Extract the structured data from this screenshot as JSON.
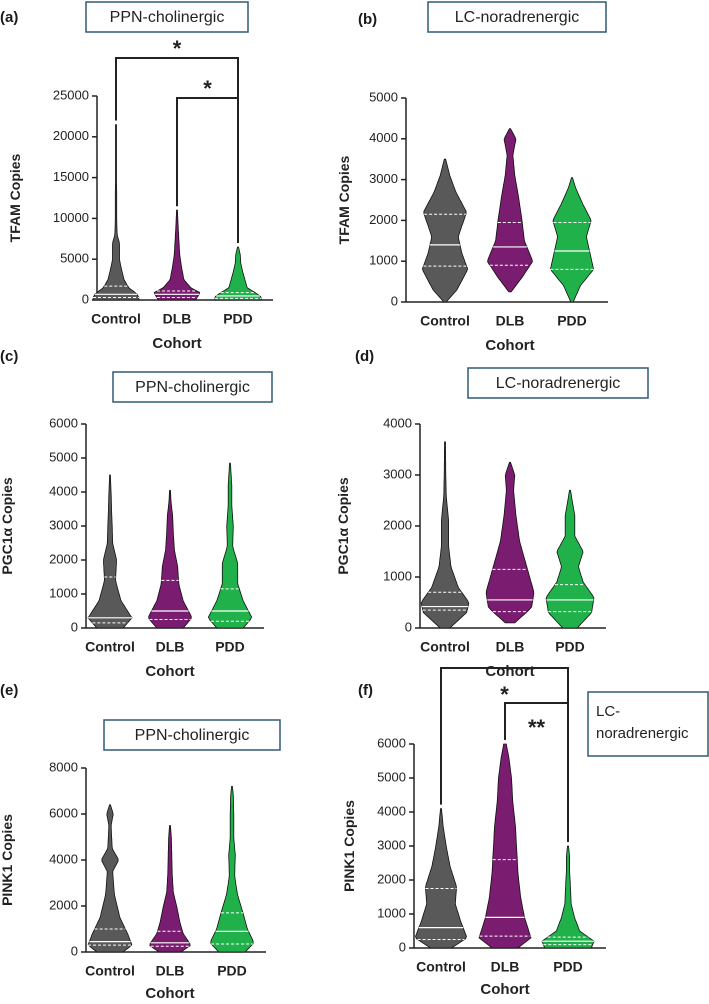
{
  "chart_data": [
    {
      "type": "violin",
      "panel_label": "(a)",
      "region_label": "PPN-cholinergic",
      "ylabel": "TFAM Copies",
      "xlabel": "Cohort",
      "ylim": [
        0,
        25000
      ],
      "yticks": [
        0,
        5000,
        10000,
        15000,
        20000,
        25000
      ],
      "categories": [
        "Control",
        "DLB",
        "PDD"
      ],
      "series": [
        {
          "name": "Control",
          "color": "#595959",
          "min": 0,
          "max": 21500,
          "median": 700,
          "q1": 300,
          "q3": 1700,
          "profile": [
            [
              0,
              1.0
            ],
            [
              300,
              1.0
            ],
            [
              800,
              0.9
            ],
            [
              1500,
              0.55
            ],
            [
              2500,
              0.35
            ],
            [
              4000,
              0.22
            ],
            [
              5000,
              0.15
            ],
            [
              7000,
              0.15
            ],
            [
              8000,
              0.05
            ],
            [
              10000,
              0.03
            ],
            [
              13000,
              0.03
            ],
            [
              15000,
              0.02
            ],
            [
              21500,
              0.02
            ]
          ]
        },
        {
          "name": "DLB",
          "color": "#7a1c6f",
          "min": 0,
          "max": 11000,
          "median": 700,
          "q1": 300,
          "q3": 1100,
          "profile": [
            [
              0,
              0.8
            ],
            [
              400,
              0.9
            ],
            [
              900,
              1.0
            ],
            [
              1500,
              0.6
            ],
            [
              2500,
              0.3
            ],
            [
              4000,
              0.2
            ],
            [
              5500,
              0.12
            ],
            [
              7500,
              0.08
            ],
            [
              9000,
              0.05
            ],
            [
              11000,
              0.02
            ]
          ]
        },
        {
          "name": "PDD",
          "color": "#21b14b",
          "min": 0,
          "max": 6500,
          "median": 500,
          "q1": 200,
          "q3": 900,
          "profile": [
            [
              0,
              1.0
            ],
            [
              400,
              1.0
            ],
            [
              900,
              0.75
            ],
            [
              1500,
              0.4
            ],
            [
              2500,
              0.3
            ],
            [
              3500,
              0.2
            ],
            [
              4500,
              0.12
            ],
            [
              5500,
              0.1
            ],
            [
              6500,
              0.02
            ]
          ]
        }
      ],
      "significance": [
        {
          "from": "Control",
          "to": "PDD",
          "label": "*"
        },
        {
          "from": "DLB",
          "to": "PDD",
          "label": "*"
        }
      ]
    },
    {
      "type": "violin",
      "panel_label": "(b)",
      "region_label": "LC-noradrenergic",
      "ylabel": "TFAM Copies",
      "xlabel": "Cohort",
      "ylim": [
        0,
        5000
      ],
      "yticks": [
        0,
        1000,
        2000,
        3000,
        4000,
        5000
      ],
      "categories": [
        "Control",
        "DLB",
        "PDD"
      ],
      "series": [
        {
          "name": "Control",
          "color": "#595959",
          "min": 0,
          "max": 3500,
          "median": 1400,
          "q1": 880,
          "q3": 2150,
          "profile": [
            [
              0,
              0.05
            ],
            [
              300,
              0.5
            ],
            [
              800,
              0.95
            ],
            [
              1200,
              0.7
            ],
            [
              1600,
              0.55
            ],
            [
              2200,
              0.9
            ],
            [
              2700,
              0.45
            ],
            [
              3100,
              0.2
            ],
            [
              3500,
              0.03
            ]
          ]
        },
        {
          "name": "DLB",
          "color": "#7a1c6f",
          "min": 250,
          "max": 4250,
          "median": 1350,
          "q1": 900,
          "q3": 1950,
          "profile": [
            [
              250,
              0.05
            ],
            [
              600,
              0.5
            ],
            [
              1000,
              0.95
            ],
            [
              1500,
              0.6
            ],
            [
              2000,
              0.5
            ],
            [
              2600,
              0.35
            ],
            [
              3100,
              0.2
            ],
            [
              3600,
              0.12
            ],
            [
              4000,
              0.25
            ],
            [
              4250,
              0.02
            ]
          ]
        },
        {
          "name": "PDD",
          "color": "#21b14b",
          "min": 0,
          "max": 3050,
          "median": 1250,
          "q1": 800,
          "q3": 1950,
          "profile": [
            [
              0,
              0.05
            ],
            [
              400,
              0.35
            ],
            [
              800,
              0.9
            ],
            [
              1200,
              0.75
            ],
            [
              1600,
              0.6
            ],
            [
              2000,
              0.8
            ],
            [
              2400,
              0.45
            ],
            [
              2800,
              0.15
            ],
            [
              3050,
              0.02
            ]
          ]
        }
      ],
      "significance": []
    },
    {
      "type": "violin",
      "panel_label": "(c)",
      "region_label": "PPN-cholinergic",
      "ylabel": "PGC1α Copies",
      "xlabel": "Cohort",
      "ylim": [
        0,
        6000
      ],
      "yticks": [
        0,
        1000,
        2000,
        3000,
        4000,
        5000,
        6000
      ],
      "categories": [
        "Control",
        "DLB",
        "PDD"
      ],
      "series": [
        {
          "name": "Control",
          "color": "#595959",
          "min": 0,
          "max": 4500,
          "median": 300,
          "q1": 150,
          "q3": 1500,
          "profile": [
            [
              0,
              0.6
            ],
            [
              300,
              1.0
            ],
            [
              800,
              0.5
            ],
            [
              1400,
              0.25
            ],
            [
              2000,
              0.3
            ],
            [
              2500,
              0.12
            ],
            [
              3000,
              0.1
            ],
            [
              3500,
              0.07
            ],
            [
              4000,
              0.05
            ],
            [
              4500,
              0.02
            ]
          ]
        },
        {
          "name": "DLB",
          "color": "#7a1c6f",
          "min": 0,
          "max": 4050,
          "median": 500,
          "q1": 250,
          "q3": 1400,
          "profile": [
            [
              0,
              0.6
            ],
            [
              300,
              1.0
            ],
            [
              800,
              0.6
            ],
            [
              1300,
              0.4
            ],
            [
              1800,
              0.35
            ],
            [
              2300,
              0.2
            ],
            [
              2800,
              0.15
            ],
            [
              3300,
              0.12
            ],
            [
              3700,
              0.05
            ],
            [
              4050,
              0.02
            ]
          ]
        },
        {
          "name": "PDD",
          "color": "#21b14b",
          "min": 0,
          "max": 4850,
          "median": 500,
          "q1": 200,
          "q3": 1150,
          "profile": [
            [
              0,
              0.6
            ],
            [
              300,
              1.0
            ],
            [
              800,
              0.6
            ],
            [
              1300,
              0.35
            ],
            [
              1900,
              0.35
            ],
            [
              2400,
              0.12
            ],
            [
              3000,
              0.15
            ],
            [
              3600,
              0.08
            ],
            [
              4200,
              0.08
            ],
            [
              4850,
              0.02
            ]
          ]
        }
      ],
      "significance": []
    },
    {
      "type": "violin",
      "panel_label": "(d)",
      "region_label": "LC-noradrenergic",
      "ylabel": "PGC1α Copies",
      "xlabel": "Cohort",
      "ylim": [
        0,
        4000
      ],
      "yticks": [
        0,
        1000,
        2000,
        3000,
        4000
      ],
      "categories": [
        "Control",
        "DLB",
        "PDD"
      ],
      "series": [
        {
          "name": "Control",
          "color": "#595959",
          "min": 0,
          "max": 3650,
          "median": 420,
          "q1": 350,
          "q3": 700,
          "profile": [
            [
              0,
              0.2
            ],
            [
              300,
              0.9
            ],
            [
              500,
              1.0
            ],
            [
              800,
              0.55
            ],
            [
              1200,
              0.25
            ],
            [
              1600,
              0.15
            ],
            [
              2100,
              0.15
            ],
            [
              2600,
              0.05
            ],
            [
              3100,
              0.03
            ],
            [
              3650,
              0.02
            ]
          ]
        },
        {
          "name": "DLB",
          "color": "#7a1c6f",
          "min": 100,
          "max": 3250,
          "median": 550,
          "q1": 320,
          "q3": 1150,
          "profile": [
            [
              100,
              0.2
            ],
            [
              400,
              0.9
            ],
            [
              700,
              1.0
            ],
            [
              1200,
              0.7
            ],
            [
              1700,
              0.4
            ],
            [
              2200,
              0.25
            ],
            [
              2700,
              0.15
            ],
            [
              3000,
              0.2
            ],
            [
              3250,
              0.02
            ]
          ]
        },
        {
          "name": "PDD",
          "color": "#21b14b",
          "min": 0,
          "max": 2700,
          "median": 550,
          "q1": 320,
          "q3": 850,
          "profile": [
            [
              0,
              0.3
            ],
            [
              300,
              0.9
            ],
            [
              600,
              1.0
            ],
            [
              900,
              0.55
            ],
            [
              1200,
              0.35
            ],
            [
              1500,
              0.55
            ],
            [
              1800,
              0.2
            ],
            [
              2200,
              0.2
            ],
            [
              2700,
              0.02
            ]
          ]
        }
      ],
      "significance": []
    },
    {
      "type": "violin",
      "panel_label": "(e)",
      "region_label": "PPN-cholinergic",
      "ylabel": "PINK1 Copies",
      "xlabel": "Cohort",
      "ylim": [
        0,
        8000
      ],
      "yticks": [
        0,
        2000,
        4000,
        6000,
        8000
      ],
      "categories": [
        "Control",
        "DLB",
        "PDD"
      ],
      "series": [
        {
          "name": "Control",
          "color": "#595959",
          "min": 0,
          "max": 6400,
          "median": 450,
          "q1": 300,
          "q3": 1000,
          "profile": [
            [
              0,
              0.6
            ],
            [
              300,
              1.0
            ],
            [
              800,
              0.8
            ],
            [
              1500,
              0.45
            ],
            [
              2500,
              0.2
            ],
            [
              3500,
              0.12
            ],
            [
              4000,
              0.4
            ],
            [
              4500,
              0.1
            ],
            [
              5500,
              0.05
            ],
            [
              6000,
              0.15
            ],
            [
              6400,
              0.02
            ]
          ]
        },
        {
          "name": "DLB",
          "color": "#7a1c6f",
          "min": 0,
          "max": 5500,
          "median": 400,
          "q1": 250,
          "q3": 900,
          "profile": [
            [
              0,
              0.5
            ],
            [
              300,
              0.95
            ],
            [
              800,
              0.6
            ],
            [
              1300,
              0.45
            ],
            [
              2000,
              0.3
            ],
            [
              2600,
              0.15
            ],
            [
              3400,
              0.1
            ],
            [
              4300,
              0.08
            ],
            [
              5000,
              0.06
            ],
            [
              5500,
              0.02
            ]
          ]
        },
        {
          "name": "PDD",
          "color": "#21b14b",
          "min": 0,
          "max": 7200,
          "median": 900,
          "q1": 350,
          "q3": 1700,
          "profile": [
            [
              0,
              0.6
            ],
            [
              400,
              1.0
            ],
            [
              1000,
              0.7
            ],
            [
              1700,
              0.5
            ],
            [
              2500,
              0.25
            ],
            [
              3300,
              0.12
            ],
            [
              4200,
              0.15
            ],
            [
              5000,
              0.08
            ],
            [
              6000,
              0.08
            ],
            [
              6800,
              0.06
            ],
            [
              7200,
              0.02
            ]
          ]
        }
      ],
      "significance": []
    },
    {
      "type": "violin",
      "panel_label": "(f)",
      "region_label": "LC-noradrenergic",
      "ylabel": "PINK1 Copies",
      "xlabel": "Cohort",
      "ylim": [
        0,
        6000
      ],
      "yticks": [
        0,
        1000,
        2000,
        3000,
        4000,
        5000,
        6000
      ],
      "categories": [
        "Control",
        "DLB",
        "PDD"
      ],
      "series": [
        {
          "name": "Control",
          "color": "#595959",
          "min": 0,
          "max": 4100,
          "median": 600,
          "q1": 250,
          "q3": 1750,
          "profile": [
            [
              0,
              0.4
            ],
            [
              300,
              1.0
            ],
            [
              800,
              0.75
            ],
            [
              1300,
              0.55
            ],
            [
              1800,
              0.6
            ],
            [
              2400,
              0.35
            ],
            [
              3000,
              0.2
            ],
            [
              3600,
              0.08
            ],
            [
              4100,
              0.02
            ]
          ]
        },
        {
          "name": "DLB",
          "color": "#7a1c6f",
          "min": 0,
          "max": 6000,
          "median": 900,
          "q1": 350,
          "q3": 2600,
          "profile": [
            [
              0,
              0.5
            ],
            [
              300,
              1.0
            ],
            [
              900,
              0.75
            ],
            [
              1500,
              0.6
            ],
            [
              2200,
              0.5
            ],
            [
              2900,
              0.45
            ],
            [
              3600,
              0.4
            ],
            [
              4300,
              0.3
            ],
            [
              5000,
              0.25
            ],
            [
              5600,
              0.15
            ],
            [
              6000,
              0.05
            ]
          ]
        },
        {
          "name": "PDD",
          "color": "#21b14b",
          "min": 0,
          "max": 3000,
          "median": 200,
          "q1": 100,
          "q3": 320,
          "profile": [
            [
              0,
              0.9
            ],
            [
              200,
              1.0
            ],
            [
              500,
              0.45
            ],
            [
              900,
              0.25
            ],
            [
              1300,
              0.12
            ],
            [
              1700,
              0.1
            ],
            [
              2300,
              0.06
            ],
            [
              2700,
              0.06
            ],
            [
              3000,
              0.02
            ]
          ]
        }
      ],
      "significance": [
        {
          "from": "Control",
          "to": "PDD",
          "label": "*"
        },
        {
          "from": "DLB",
          "to": "PDD",
          "label": "**"
        }
      ]
    }
  ]
}
